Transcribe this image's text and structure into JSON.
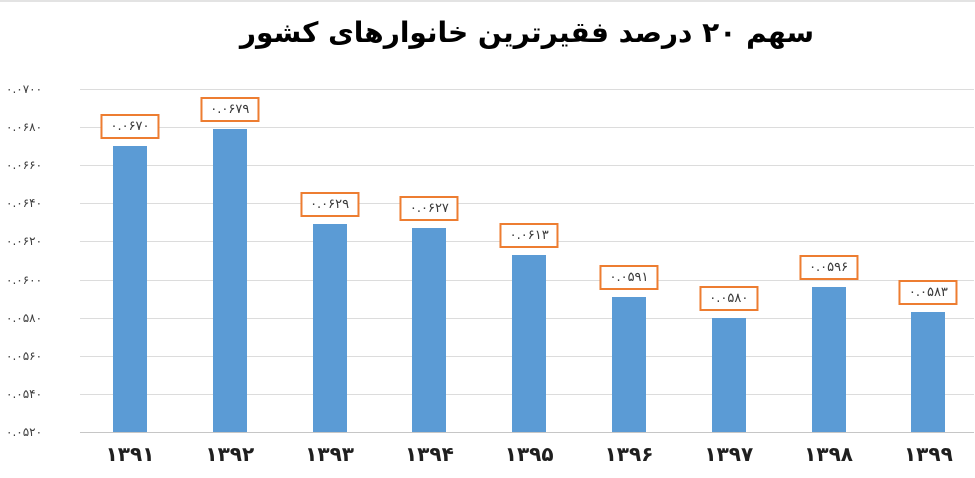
{
  "chart_data": {
    "type": "bar",
    "title": "سهم ۲۰ درصد فقیرترین خانوارهای کشور",
    "direction": "rtl",
    "categories": [
      "۱۳۹۱",
      "۱۳۹۲",
      "۱۳۹۳",
      "۱۳۹۴",
      "۱۳۹۵",
      "۱۳۹۶",
      "۱۳۹۷",
      "۱۳۹۸",
      "۱۳۹۹"
    ],
    "values": [
      0.067,
      0.0679,
      0.0629,
      0.0627,
      0.0613,
      0.0591,
      0.058,
      0.0596,
      0.0583
    ],
    "value_labels": [
      "۰.۰۶۷۰",
      "۰.۰۶۷۹",
      "۰.۰۶۲۹",
      "۰.۰۶۲۷",
      "۰.۰۶۱۳",
      "۰.۰۵۹۱",
      "۰.۰۵۸۰",
      "۰.۰۵۹۶",
      "۰.۰۵۸۳"
    ],
    "xlabel": "",
    "ylabel": "",
    "y_axis": {
      "min": 0.052,
      "max": 0.07,
      "step": 0.002,
      "tick_labels_top_to_bottom": [
        "۰.۰۷۰۰",
        "۰.۰۶۸۰",
        "۰.۰۶۶۰",
        "۰.۰۶۴۰",
        "۰.۰۶۲۰",
        "۰.۰۶۰۰",
        "۰.۰۵۸۰",
        "۰.۰۵۶۰",
        "۰.۰۵۴۰",
        "۰.۰۵۲۰"
      ]
    },
    "grid": true,
    "legend_position": "none",
    "colors": {
      "bar": "#5B9BD5",
      "data_label_border": "#ED7D31",
      "data_label_text": "#3a3a3a",
      "gridline": "#DCDCDC",
      "axis_line": "#C6C6C6",
      "tick_text": "#3f3f3f",
      "title_text": "#000000"
    }
  }
}
